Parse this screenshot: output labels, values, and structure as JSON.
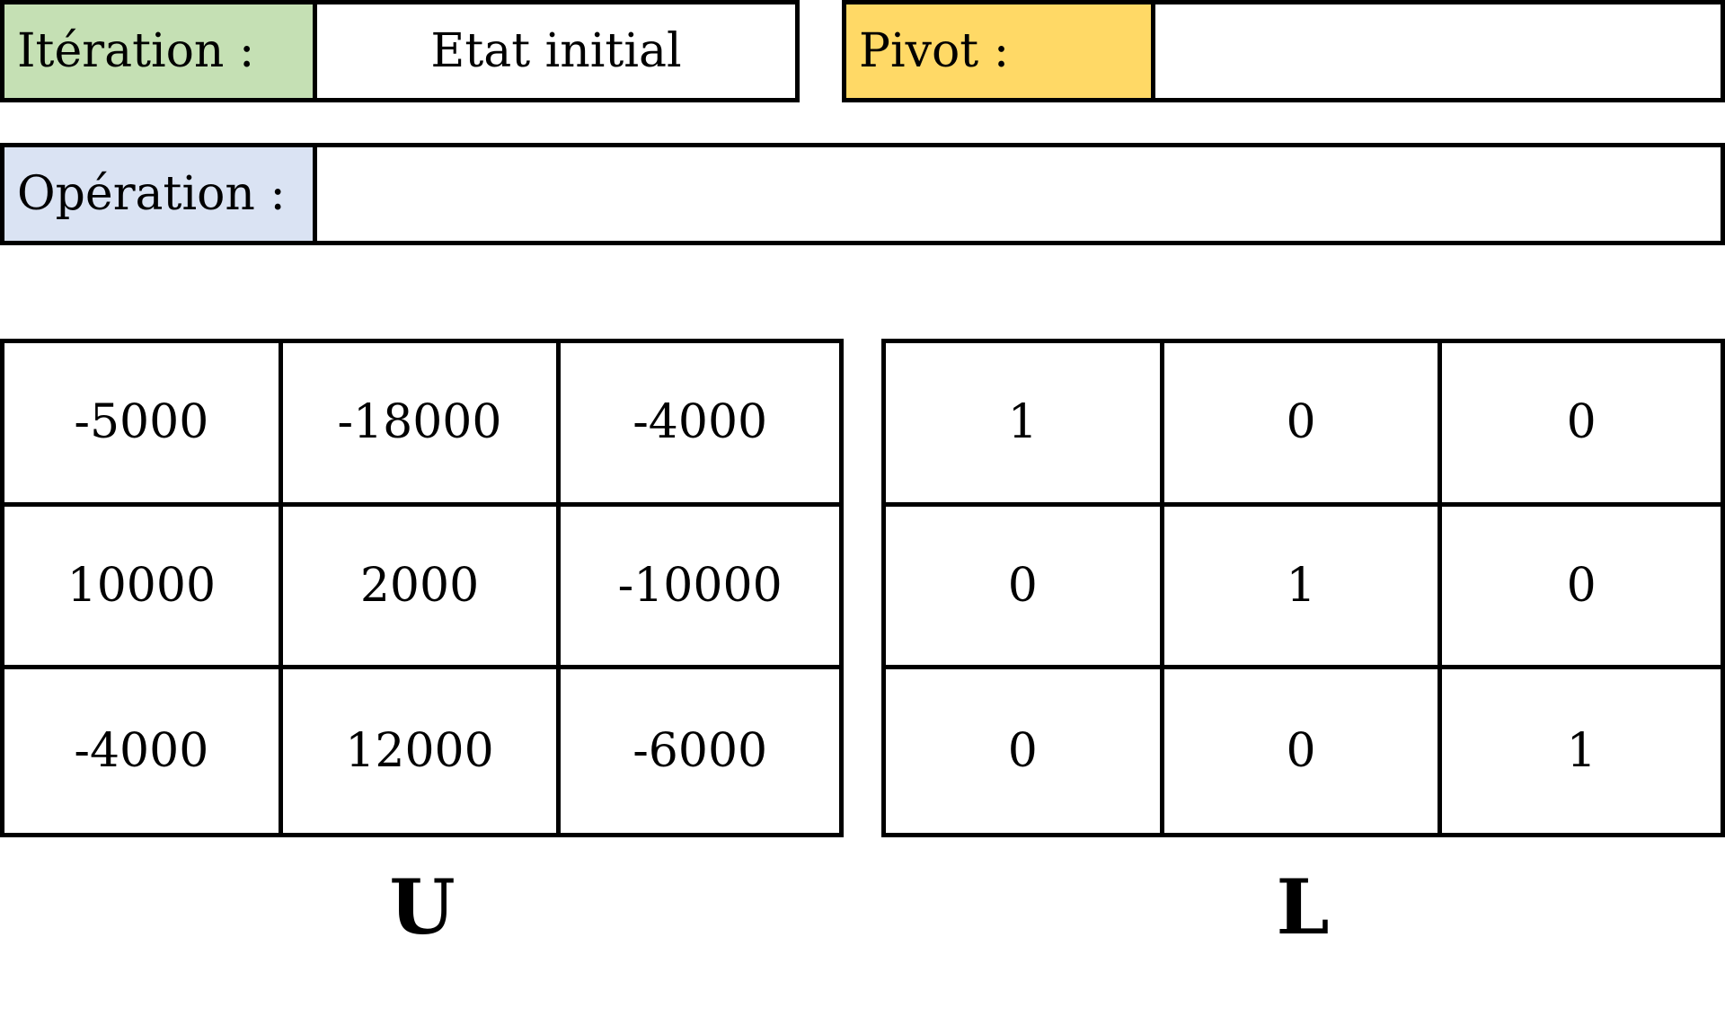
{
  "iteration": {
    "label": "Itération :",
    "value": "Etat initial"
  },
  "pivot": {
    "label": "Pivot :",
    "value": ""
  },
  "operation": {
    "label": "Opération :",
    "value": ""
  },
  "colors": {
    "iteration_label_bg": "#c5e0b4",
    "pivot_label_bg": "#ffd966",
    "operation_label_bg": "#dae3f3"
  },
  "matrix_u": {
    "name": "U",
    "rows": [
      [
        "-5000",
        "-18000",
        "-4000"
      ],
      [
        "10000",
        "2000",
        "-10000"
      ],
      [
        "-4000",
        "12000",
        "-6000"
      ]
    ]
  },
  "matrix_l": {
    "name": "L",
    "rows": [
      [
        "1",
        "0",
        "0"
      ],
      [
        "0",
        "1",
        "0"
      ],
      [
        "0",
        "0",
        "1"
      ]
    ]
  }
}
